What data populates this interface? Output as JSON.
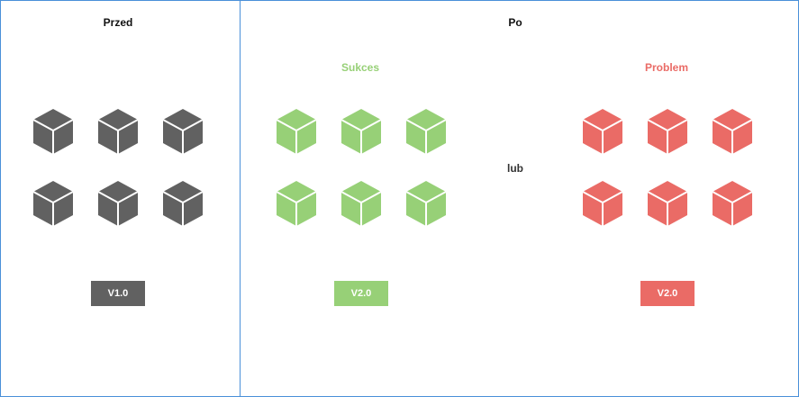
{
  "before": {
    "title": "Przed",
    "version": "V1.0",
    "color": "#616161"
  },
  "after": {
    "title": "Po",
    "separator": "lub",
    "success": {
      "label": "Sukces",
      "version": "V2.0",
      "color": "#97d077"
    },
    "problem": {
      "label": "Problem",
      "version": "V2.0",
      "color": "#ea6b66"
    }
  },
  "icons": {
    "cube": "cube-icon"
  }
}
